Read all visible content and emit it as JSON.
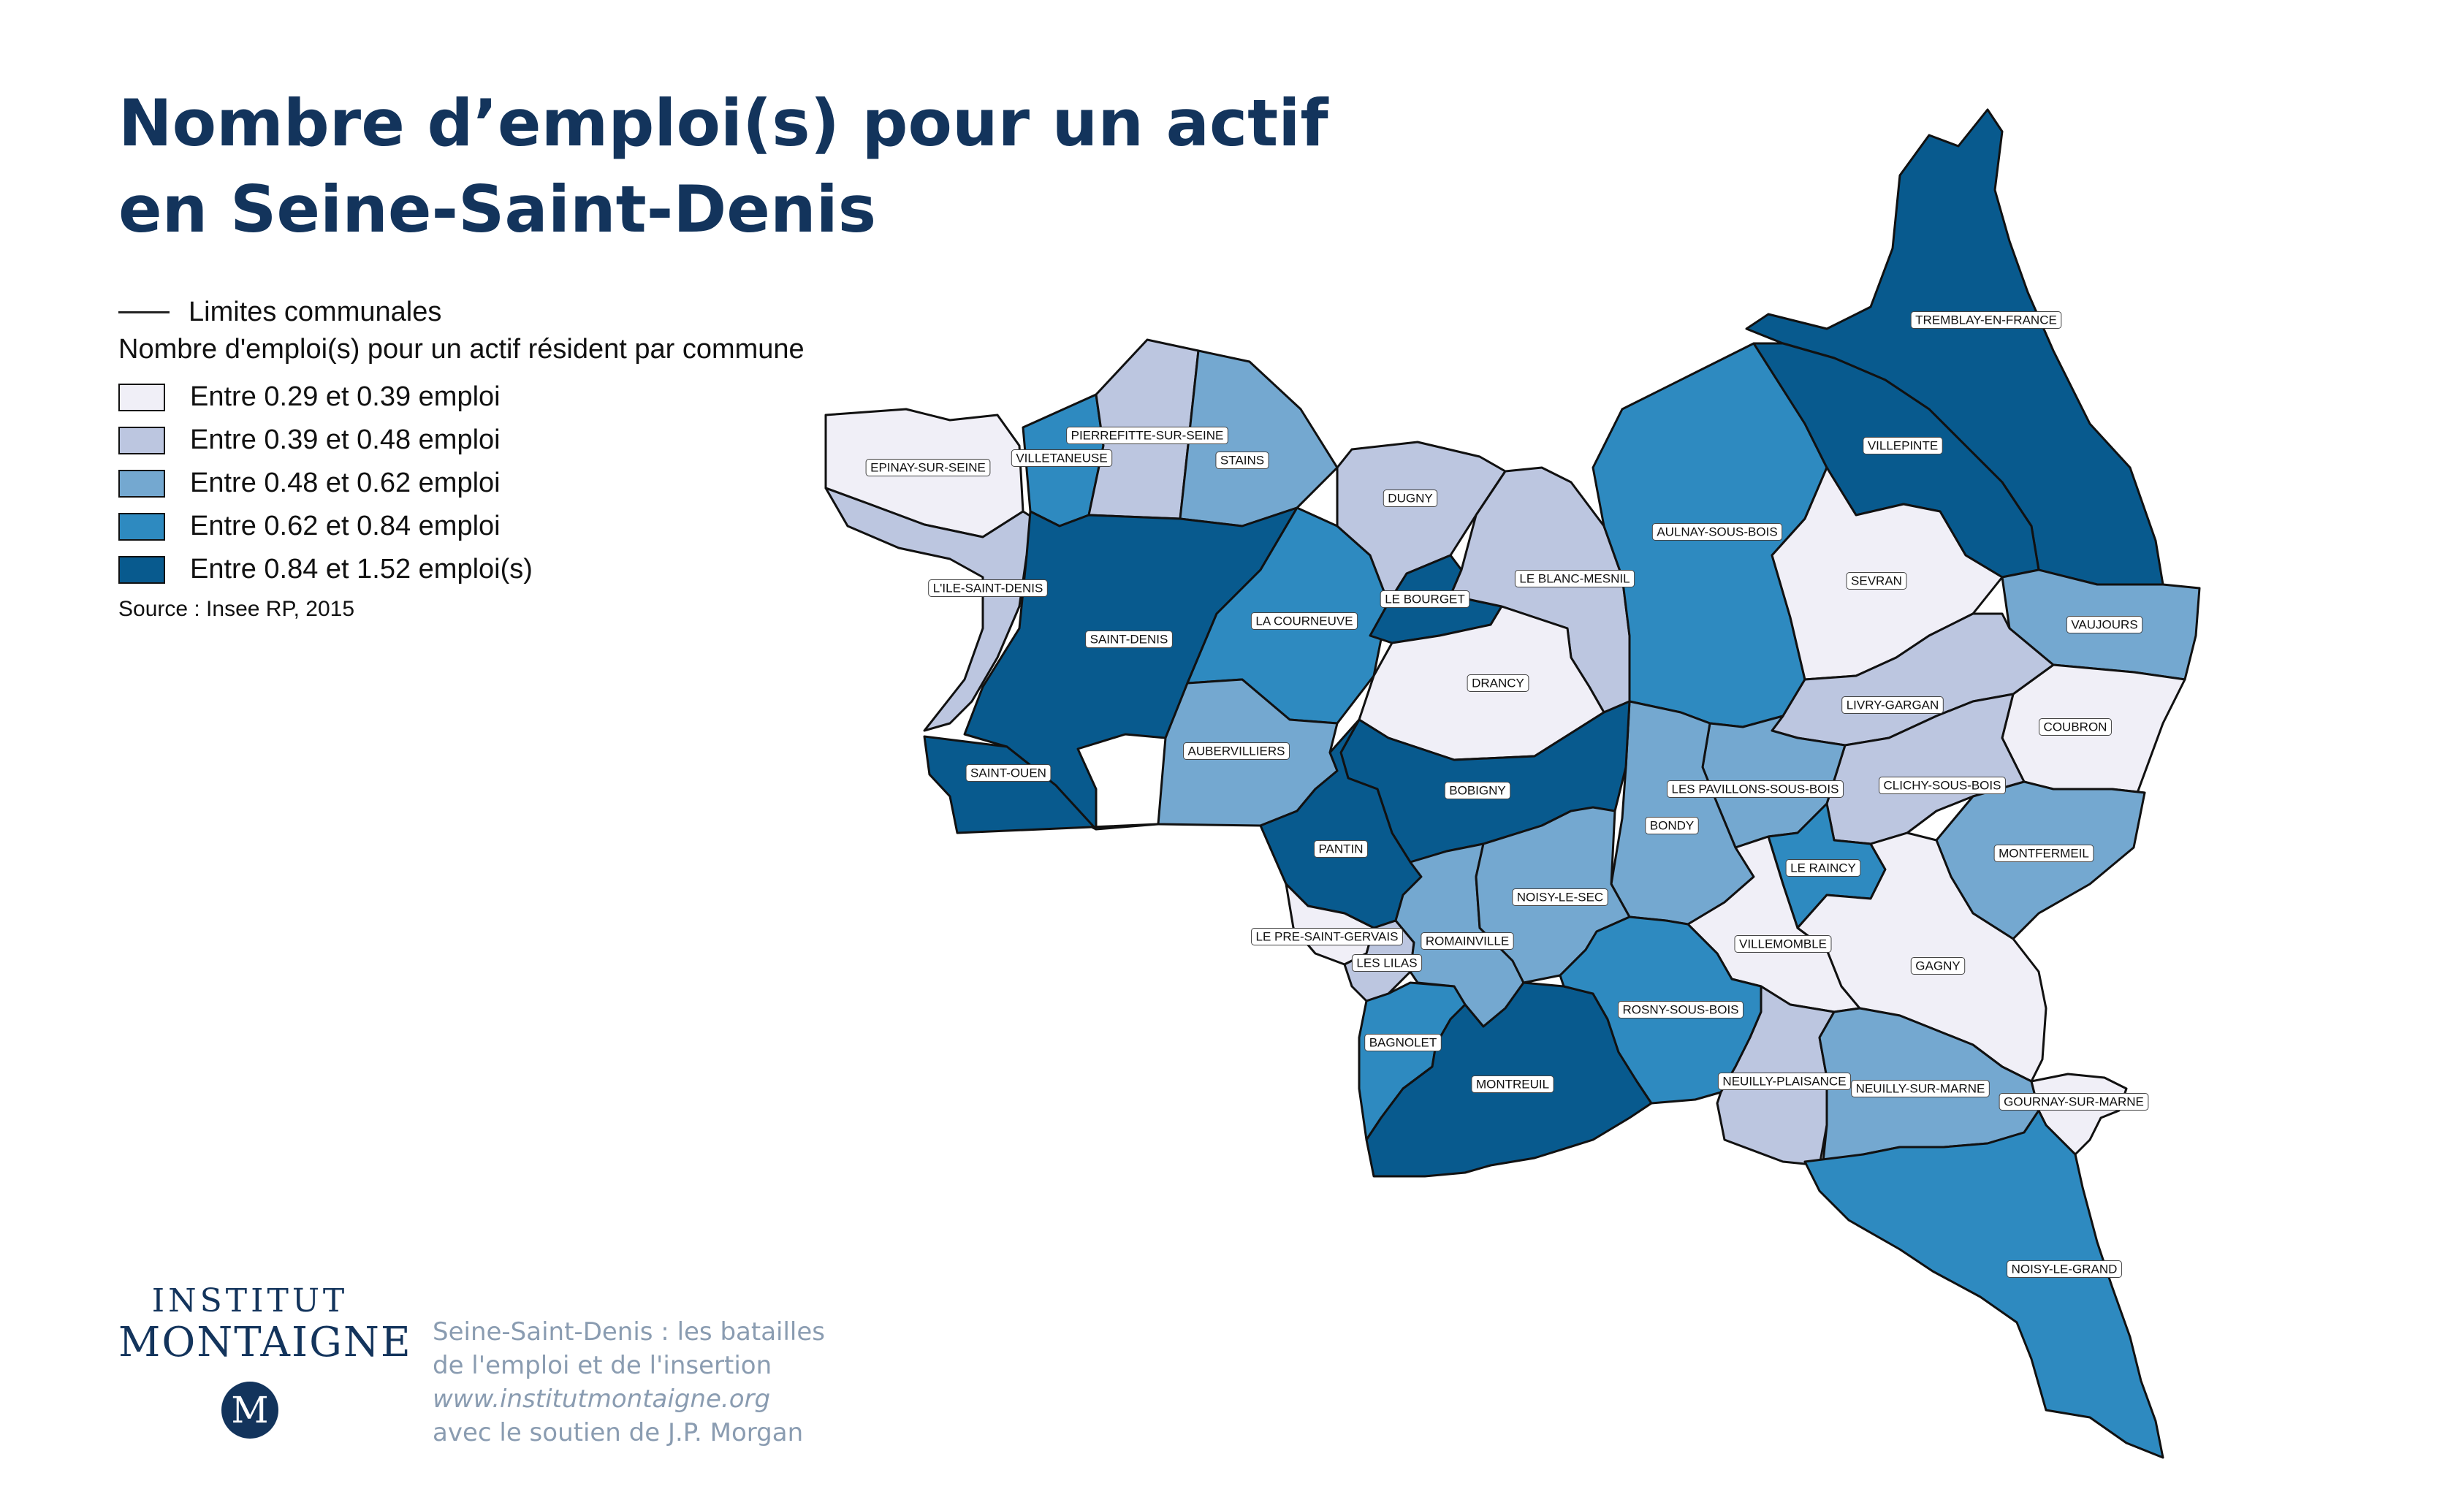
{
  "title": {
    "line1": "Nombre d’emploi(s) pour un actif",
    "line2": "en Seine-Saint-Denis"
  },
  "legend": {
    "boundary_label": "Limites communales",
    "title": "Nombre d'emploi(s) pour un actif résident par commune",
    "classes": [
      {
        "label": "Entre 0.29 et 0.39 emploi",
        "color": "#f0eff7"
      },
      {
        "label": "Entre 0.39 et 0.48 emploi",
        "color": "#bcc6e0"
      },
      {
        "label": "Entre 0.48 et 0.62 emploi",
        "color": "#74a8d0"
      },
      {
        "label": "Entre 0.62 et 0.84 emploi",
        "color": "#2e8ac0"
      },
      {
        "label": "Entre 0.84 et 1.52 emploi(s)",
        "color": "#085a8e"
      }
    ],
    "source": "Source : Insee RP, 2015"
  },
  "communes": [
    {
      "name": "EPINAY-SUR-SEINE",
      "class": 0
    },
    {
      "name": "VILLETANEUSE",
      "class": 3
    },
    {
      "name": "PIERREFITTE-SUR-SEINE",
      "class": 1
    },
    {
      "name": "STAINS",
      "class": 2
    },
    {
      "name": "L'ILE-SAINT-DENIS",
      "class": 1
    },
    {
      "name": "SAINT-DENIS",
      "class": 4
    },
    {
      "name": "SAINT-OUEN",
      "class": 4
    },
    {
      "name": "LA COURNEUVE",
      "class": 3
    },
    {
      "name": "DUGNY",
      "class": 1
    },
    {
      "name": "LE BOURGET",
      "class": 4
    },
    {
      "name": "LE BLANC-MESNIL",
      "class": 1
    },
    {
      "name": "DRANCY",
      "class": 0
    },
    {
      "name": "AULNAY-SOUS-BOIS",
      "class": 3
    },
    {
      "name": "TREMBLAY-EN-FRANCE",
      "class": 4
    },
    {
      "name": "VILLEPINTE",
      "class": 4
    },
    {
      "name": "SEVRAN",
      "class": 0
    },
    {
      "name": "VAUJOURS",
      "class": 2
    },
    {
      "name": "COUBRON",
      "class": 0
    },
    {
      "name": "LIVRY-GARGAN",
      "class": 1
    },
    {
      "name": "CLICHY-SOUS-BOIS",
      "class": 1
    },
    {
      "name": "MONTFERMEIL",
      "class": 2
    },
    {
      "name": "LES PAVILLONS-SOUS-BOIS",
      "class": 2
    },
    {
      "name": "LE RAINCY",
      "class": 3
    },
    {
      "name": "BONDY",
      "class": 2
    },
    {
      "name": "BOBIGNY",
      "class": 4
    },
    {
      "name": "AUBERVILLIERS",
      "class": 2
    },
    {
      "name": "PANTIN",
      "class": 4
    },
    {
      "name": "LE PRE-SAINT-GERVAIS",
      "class": 0
    },
    {
      "name": "LES LILAS",
      "class": 1
    },
    {
      "name": "ROMAINVILLE",
      "class": 2
    },
    {
      "name": "NOISY-LE-SEC",
      "class": 2
    },
    {
      "name": "VILLEMOMBLE",
      "class": 0
    },
    {
      "name": "GAGNY",
      "class": 0
    },
    {
      "name": "BAGNOLET",
      "class": 3
    },
    {
      "name": "MONTREUIL",
      "class": 4
    },
    {
      "name": "ROSNY-SOUS-BOIS",
      "class": 3
    },
    {
      "name": "NEUILLY-PLAISANCE",
      "class": 1
    },
    {
      "name": "NEUILLY-SUR-MARNE",
      "class": 2
    },
    {
      "name": "GOURNAY-SUR-MARNE",
      "class": 0
    },
    {
      "name": "NOISY-LE-GRAND",
      "class": 3
    }
  ],
  "brand": {
    "line1": "INSTITUT",
    "line2": "MONTAIGNE",
    "mark": "M"
  },
  "credits": {
    "line1": "Seine-Saint-Denis : les batailles",
    "line2": "de l'emploi et de l'insertion",
    "line3": "www.institutmontaigne.org",
    "line4": "avec le soutien de J.P. Morgan"
  }
}
